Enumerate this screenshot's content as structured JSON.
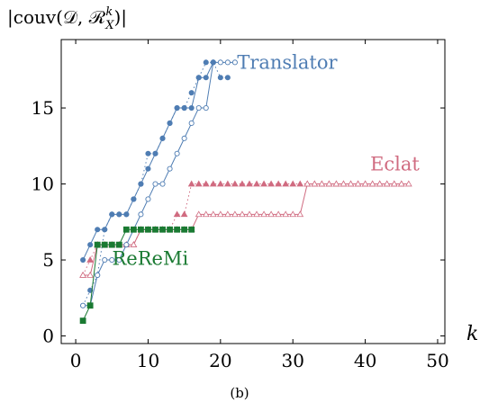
{
  "chart_data": {
    "type": "line",
    "ylabel": "|couv(𝒟, ℛ",
    "ylabel_sup": "k",
    "ylabel_sub": "X",
    "ylabel_end": ")|",
    "xlabel": "k",
    "caption": "(b)",
    "xlim": [
      -2,
      51
    ],
    "ylim": [
      -0.5,
      19.5
    ],
    "x_ticks": [
      0,
      10,
      20,
      30,
      40,
      50
    ],
    "y_ticks": [
      0,
      5,
      10,
      15
    ],
    "grid": false,
    "colors": {
      "translator": "#4f7db3",
      "eclat": "#d06b80",
      "reremi": "#1a7a32"
    },
    "series": [
      {
        "name": "Translator",
        "style": "solid-filled-circle",
        "x": [
          1,
          2,
          3,
          4,
          5,
          6,
          7,
          8,
          9,
          10,
          11,
          12,
          13,
          14,
          15,
          16,
          17,
          18,
          19
        ],
        "values": [
          5,
          6,
          7,
          7,
          8,
          8,
          8,
          9,
          10,
          11,
          12,
          13,
          14,
          15,
          15,
          15,
          17,
          17,
          18
        ]
      },
      {
        "style": "solid-open-circle",
        "x": [
          1,
          2,
          3,
          4,
          5,
          6,
          7,
          8,
          9,
          10,
          11,
          12,
          13,
          14,
          15,
          16,
          17,
          18,
          19,
          20,
          21,
          22
        ],
        "values": [
          2,
          2,
          4,
          5,
          5,
          5,
          6,
          7,
          8,
          9,
          10,
          10,
          11,
          12,
          13,
          14,
          15,
          15,
          18,
          18,
          18,
          18
        ]
      },
      {
        "style": "dotted-filled-circle",
        "x": [
          1,
          2,
          3,
          4,
          5,
          6,
          7,
          8,
          9,
          10,
          11,
          12,
          13,
          14,
          15,
          16,
          17,
          18,
          19,
          20,
          21
        ],
        "values": [
          2,
          3,
          4,
          7,
          8,
          8,
          8,
          9,
          10,
          12,
          12,
          13,
          14,
          15,
          15,
          16,
          17,
          18,
          18,
          17,
          17
        ]
      },
      {
        "name": "Eclat",
        "style": "solid-open-triangle",
        "x": [
          1,
          2,
          3,
          4,
          5,
          6,
          7,
          8,
          9,
          10,
          11,
          12,
          13,
          14,
          15,
          16,
          17,
          18,
          19,
          20,
          21,
          22,
          23,
          24,
          25,
          26,
          27,
          28,
          29,
          30,
          31,
          32,
          33,
          34,
          35,
          36,
          37,
          38,
          39,
          40,
          41,
          42,
          43,
          44,
          45,
          46
        ],
        "values": [
          4,
          4,
          6,
          6,
          6,
          6,
          6,
          6,
          7,
          7,
          7,
          7,
          7,
          7,
          7,
          7,
          8,
          8,
          8,
          8,
          8,
          8,
          8,
          8,
          8,
          8,
          8,
          8,
          8,
          8,
          8,
          10,
          10,
          10,
          10,
          10,
          10,
          10,
          10,
          10,
          10,
          10,
          10,
          10,
          10,
          10
        ]
      },
      {
        "style": "dotted-filled-triangle",
        "x": [
          1,
          2,
          3,
          4,
          5,
          6,
          7,
          8,
          9,
          10,
          11,
          12,
          13,
          14,
          15,
          16,
          17,
          18,
          19,
          20,
          21,
          22,
          23,
          24,
          25,
          26,
          27,
          28,
          29,
          30,
          31,
          32,
          33,
          34,
          35,
          36,
          37,
          38,
          39,
          40,
          41,
          42,
          43,
          44,
          45
        ],
        "values": [
          4,
          5,
          6,
          6,
          6,
          6,
          6,
          6,
          7,
          7,
          7,
          7,
          7,
          8,
          8,
          10,
          10,
          10,
          10,
          10,
          10,
          10,
          10,
          10,
          10,
          10,
          10,
          10,
          10,
          10,
          10,
          10,
          10,
          10,
          10,
          10,
          10,
          10,
          10,
          10,
          10,
          10,
          10,
          10,
          10
        ]
      },
      {
        "name": "ReReMi",
        "style": "solid-filled-square",
        "x": [
          1,
          2,
          3,
          4,
          5,
          6,
          7,
          8,
          9,
          10,
          11,
          12,
          13,
          14,
          15,
          16
        ],
        "values": [
          1,
          2,
          6,
          6,
          6,
          6,
          7,
          7,
          7,
          7,
          7,
          7,
          7,
          7,
          7,
          7
        ]
      }
    ]
  }
}
